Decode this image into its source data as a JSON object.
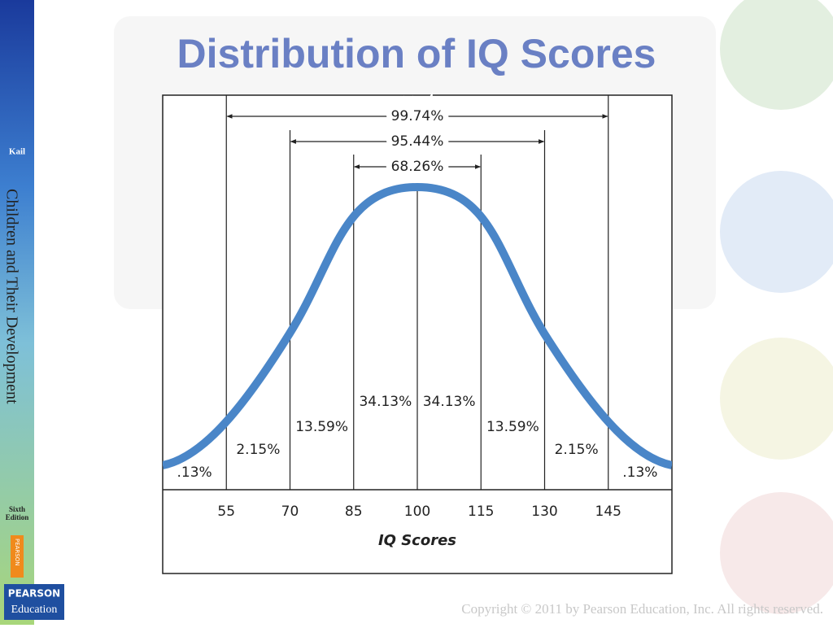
{
  "slide": {
    "title": "Distribution of IQ Scores",
    "sidebar": {
      "author": "Kail",
      "book": "Children and Their Development",
      "edition": [
        "Sixth",
        "Edition"
      ],
      "tab": "PEARSON",
      "logo": [
        "PEARSON",
        "Education"
      ]
    },
    "footer": "Copyright © 2011 by Pearson Education, Inc. All rights reserved."
  },
  "chart_data": {
    "type": "distribution",
    "x_label": "IQ Scores",
    "xlim": [
      40,
      160
    ],
    "xticks": [
      55,
      70,
      85,
      100,
      115,
      130,
      145
    ],
    "color": "#4a86c8",
    "values": [
      0.13,
      2.15,
      13.59,
      34.13,
      34.13,
      13.59,
      2.15,
      0.13
    ],
    "value_labels": [
      ".13%",
      "2.15%",
      "13.59%",
      "34.13%",
      "34.13%",
      "13.59%",
      "2.15%",
      ".13%"
    ],
    "ranges": [
      {
        "label": "99.74%",
        "value": 99.74,
        "from": 55,
        "to": 145
      },
      {
        "label": "95.44%",
        "value": 95.44,
        "from": 70,
        "to": 130
      },
      {
        "label": "68.26%",
        "value": 68.26,
        "from": 85,
        "to": 115
      }
    ]
  }
}
